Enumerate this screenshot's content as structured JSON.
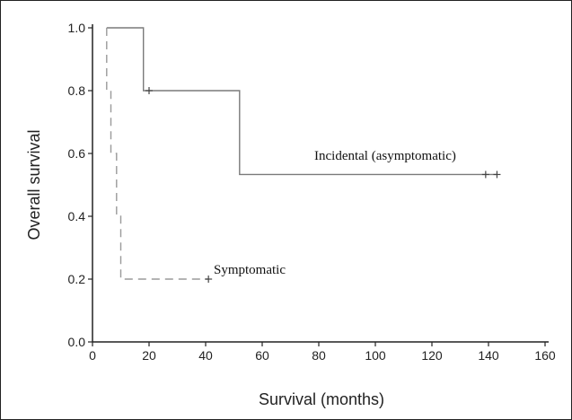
{
  "chart_data": {
    "type": "line",
    "title": "",
    "xlabel": "Survival (months)",
    "ylabel": "Overall survival",
    "xlim": [
      0,
      160
    ],
    "ylim": [
      0,
      1.0
    ],
    "x_ticks": [
      0,
      20,
      40,
      60,
      80,
      100,
      120,
      140,
      160
    ],
    "y_ticks": [
      "0.0",
      "0.2",
      "0.4",
      "0.6",
      "0.8",
      "1.0"
    ],
    "grid": false,
    "legend": "none",
    "series": [
      {
        "name": "Incidental (asymptomatic)",
        "style": "solid",
        "color": "#7a7a7a",
        "steps": [
          {
            "x": 5,
            "y": 1.0
          },
          {
            "x": 18,
            "y": 1.0
          },
          {
            "x": 18,
            "y": 0.8
          },
          {
            "x": 52,
            "y": 0.8
          },
          {
            "x": 52,
            "y": 0.533
          },
          {
            "x": 143,
            "y": 0.533
          }
        ],
        "censored": [
          {
            "x": 20,
            "y": 0.8
          },
          {
            "x": 139,
            "y": 0.533
          },
          {
            "x": 143,
            "y": 0.533
          }
        ]
      },
      {
        "name": "Symptomatic",
        "style": "dashed",
        "color": "#9a9a9a",
        "steps": [
          {
            "x": 5,
            "y": 1.0
          },
          {
            "x": 5,
            "y": 0.8
          },
          {
            "x": 6.5,
            "y": 0.8
          },
          {
            "x": 6.5,
            "y": 0.6
          },
          {
            "x": 8.5,
            "y": 0.6
          },
          {
            "x": 8.5,
            "y": 0.4
          },
          {
            "x": 10,
            "y": 0.4
          },
          {
            "x": 10,
            "y": 0.2
          },
          {
            "x": 41,
            "y": 0.2
          }
        ],
        "censored": [
          {
            "x": 41,
            "y": 0.2
          }
        ]
      }
    ]
  }
}
